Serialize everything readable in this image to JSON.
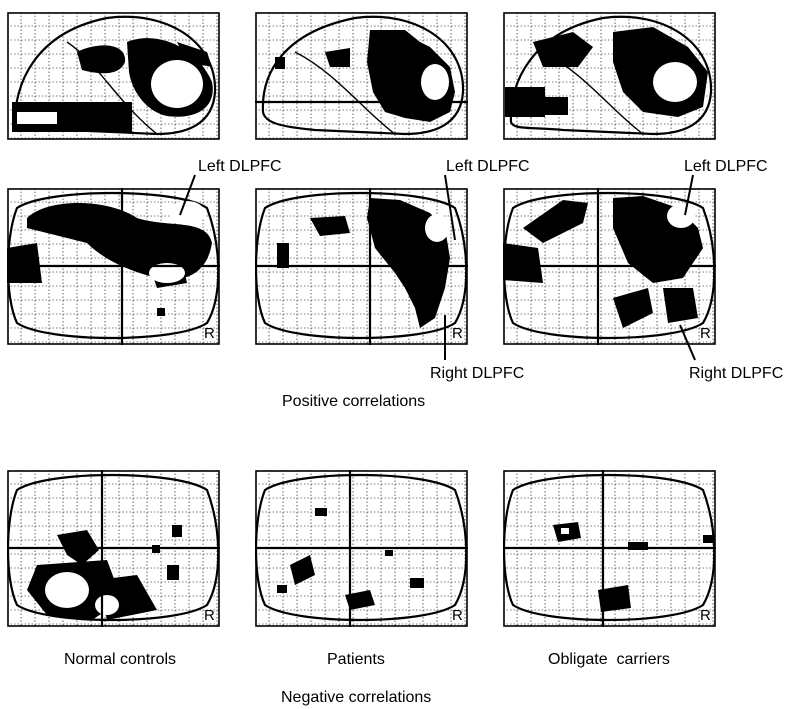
{
  "figure": {
    "side_marker": "R",
    "callouts": {
      "left_dlpfc": "Left DLPFC",
      "right_dlpfc": "Right DLPFC"
    },
    "section_titles": {
      "positive": "Positive correlations",
      "negative": "Negative correlations"
    },
    "groups": {
      "controls": "Normal controls",
      "patients": "Patients",
      "carriers": "Obligate  carriers"
    }
  }
}
